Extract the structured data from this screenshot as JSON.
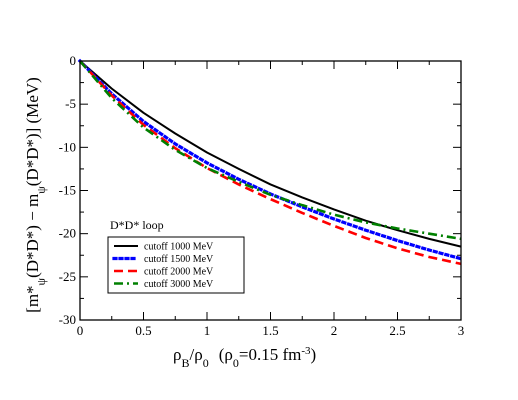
{
  "chart_data": {
    "type": "line",
    "title": "",
    "annotation": "D*D* loop",
    "xlabel": {
      "rho_b": "ρ",
      "sub_b": "B",
      "slash_rho0": "/ρ",
      "sub_0": "0",
      "paren_rho0": "(ρ",
      "sub_0b": "0",
      "eq": "=0.15 fm",
      "exp": "-3",
      "close": ")"
    },
    "ylabel": {
      "open": "[m*",
      "sub1": "ψ",
      "mid1": "(D*D*) − m",
      "sub2": "ψ",
      "mid2": "(D*D*)]  (MeV)"
    },
    "xlim": [
      0,
      3
    ],
    "ylim": [
      -30,
      0
    ],
    "x_ticks": [
      "0",
      "0.5",
      "1",
      "1.5",
      "2",
      "2.5",
      "3"
    ],
    "y_ticks": [
      "0",
      "-5",
      "-10",
      "-15",
      "-20",
      "-25",
      "-30"
    ],
    "legend_position": "lower-left",
    "series": [
      {
        "name": "cutoff 1000 MeV",
        "color": "#000000",
        "style": "solid",
        "x": [
          0,
          0.25,
          0.5,
          0.75,
          1.0,
          1.25,
          1.5,
          1.75,
          2.0,
          2.25,
          2.5,
          2.75,
          3.0
        ],
        "y": [
          0,
          -3.2,
          -6.0,
          -8.4,
          -10.6,
          -12.5,
          -14.3,
          -15.8,
          -17.2,
          -18.5,
          -19.6,
          -20.6,
          -21.5
        ]
      },
      {
        "name": "cutoff 1500 MeV",
        "color": "#0000ff",
        "style": "dotted",
        "x": [
          0,
          0.25,
          0.5,
          0.75,
          1.0,
          1.25,
          1.5,
          1.75,
          2.0,
          2.25,
          2.5,
          2.75,
          3.0
        ],
        "y": [
          0,
          -3.8,
          -7.0,
          -9.6,
          -11.8,
          -13.7,
          -15.4,
          -16.9,
          -18.3,
          -19.6,
          -20.8,
          -21.9,
          -22.9
        ]
      },
      {
        "name": "cutoff 2000 MeV",
        "color": "#ff0000",
        "style": "dashed",
        "x": [
          0,
          0.25,
          0.5,
          0.75,
          1.0,
          1.25,
          1.5,
          1.75,
          2.0,
          2.25,
          2.5,
          2.75,
          3.0
        ],
        "y": [
          0,
          -4.0,
          -7.4,
          -10.1,
          -12.4,
          -14.3,
          -16.0,
          -17.6,
          -19.1,
          -20.5,
          -21.7,
          -22.7,
          -23.5
        ]
      },
      {
        "name": "cutoff 3000 MeV",
        "color": "#008000",
        "style": "dashdot",
        "x": [
          0,
          0.25,
          0.5,
          0.75,
          1.0,
          1.25,
          1.5,
          1.75,
          2.0,
          2.25,
          2.5,
          2.75,
          3.0
        ],
        "y": [
          0,
          -4.3,
          -7.7,
          -10.3,
          -12.4,
          -14.0,
          -15.5,
          -16.7,
          -17.8,
          -18.7,
          -19.4,
          -20.0,
          -20.6
        ]
      }
    ]
  }
}
